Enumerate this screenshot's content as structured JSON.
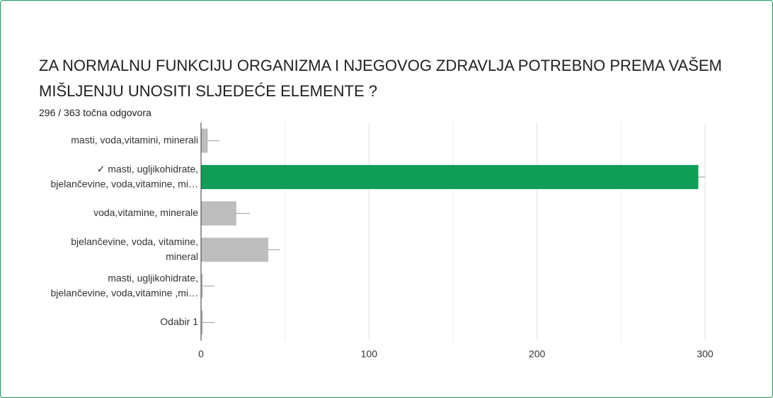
{
  "chart_data": {
    "type": "hbar",
    "title": "ZA NORMALNU FUNKCIJU ORGANIZMA I NJEGOVOG ZDRAVLJA POTREBNO PREMA VAŠEM MIŠLJENJU UNOSITI SLJEDEĆE ELEMENTE ?",
    "subtitle": "296 / 363 točna odgovora",
    "categories": [
      "masti, voda,vitamini, minerali",
      "✓ masti, ugljikohidrate,\nbjelančevine, voda,vitamine, mi…",
      "voda,vitamine, minerale",
      "bjelančevine, voda, vitamine,\nmineral",
      "masti, ugljikohidrate,\nbjelančevine, voda,vitamine ,mi…",
      "Odabir 1"
    ],
    "values": [
      4,
      296,
      21,
      40,
      1,
      1
    ],
    "errors": [
      7,
      4,
      8,
      7,
      7,
      7
    ],
    "colors": [
      "#bdbdbd",
      "#0f9d58",
      "#bdbdbd",
      "#bdbdbd",
      "#bdbdbd",
      "#bdbdbd"
    ],
    "xlim": [
      0,
      300
    ],
    "xticks": [
      0,
      100,
      200,
      300
    ],
    "minor_xticks": [
      50,
      150,
      250
    ],
    "grid": true
  }
}
